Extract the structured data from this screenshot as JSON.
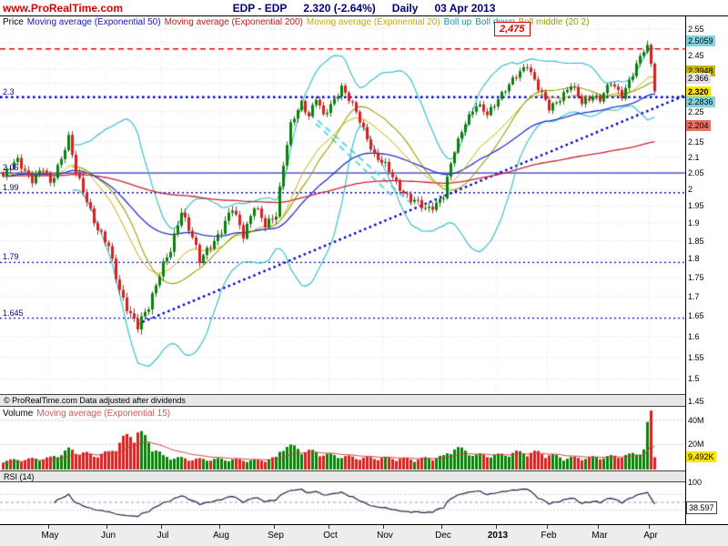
{
  "header": {
    "brand": "www.ProRealTime.com",
    "symbol": "EDP - EDP",
    "last_price": "2.320 (-2.64%)",
    "timeframe": "Daily",
    "date": "03 Apr 2013"
  },
  "price_panel": {
    "legend": [
      {
        "label": "Price",
        "color": "#000000"
      },
      {
        "label": "Moving average (Exponential 50)",
        "color": "#1414cc"
      },
      {
        "label": "Moving average (Exponential 200)",
        "color": "#cc1414"
      },
      {
        "label": "Moving average (Exponential 20)",
        "color": "#c8a800"
      },
      {
        "label": "Boll up",
        "color": "#00a0b4"
      },
      {
        "label": "Boll down",
        "color": "#00a0b4"
      },
      {
        "label": "Boll middle (20 2)",
        "color": "#8e9e00"
      }
    ],
    "alert_label": "2,475",
    "left_labels": [
      {
        "text": "2.3",
        "price": 2.3
      },
      {
        "text": "2.05",
        "price": 2.05
      },
      {
        "text": "1.99",
        "price": 1.99
      },
      {
        "text": "1.79",
        "price": 1.79
      },
      {
        "text": "1.645",
        "price": 1.645
      }
    ],
    "axis_ticks": [
      {
        "text": "2.55",
        "value": 2.55
      },
      {
        "text": "2.45",
        "value": 2.45
      },
      {
        "text": "2.25",
        "value": 2.25
      },
      {
        "text": "2.15",
        "value": 2.15
      },
      {
        "text": "2.1",
        "value": 2.1
      },
      {
        "text": "2.05",
        "value": 2.05
      },
      {
        "text": "2",
        "value": 2.0
      },
      {
        "text": "1.95",
        "value": 1.95
      },
      {
        "text": "1.9",
        "value": 1.9
      },
      {
        "text": "1.85",
        "value": 1.85
      },
      {
        "text": "1.8",
        "value": 1.8
      },
      {
        "text": "1.75",
        "value": 1.75
      },
      {
        "text": "1.7",
        "value": 1.7
      },
      {
        "text": "1.65",
        "value": 1.65
      },
      {
        "text": "1.6",
        "value": 1.6
      },
      {
        "text": "1.55",
        "value": 1.55
      },
      {
        "text": "1.5",
        "value": 1.5
      },
      {
        "text": "1.45",
        "value": 1.45
      }
    ],
    "badges": [
      {
        "text": "2.5059",
        "value": 2.5059,
        "bg": "#7fd4e0",
        "fg": "#000000",
        "bold": false
      },
      {
        "text": "2.3948",
        "value": 2.3948,
        "bg": "#c8b400",
        "fg": "#000000",
        "bold": false
      },
      {
        "text": "2.366",
        "value": 2.366,
        "bg": "#e0e0e0",
        "fg": "#000000",
        "bold": false
      },
      {
        "text": "2.320",
        "value": 2.32,
        "bg": "#ffe400",
        "fg": "#000000",
        "bold": true
      },
      {
        "text": "2.2836",
        "value": 2.2836,
        "bg": "#7fd4e0",
        "fg": "#000000",
        "bold": false
      },
      {
        "text": "2.204",
        "value": 2.204,
        "bg": "#e87060",
        "fg": "#000000",
        "bold": false
      }
    ]
  },
  "copyright": "© ProRealTime.com  Data adjusted after dividends",
  "volume_panel": {
    "legend": [
      {
        "label": "Volume",
        "color": "#000000"
      },
      {
        "label": "Moving average (Exponential 15)",
        "color": "#d45858"
      }
    ],
    "axis": [
      {
        "text": "40M",
        "value": 40
      },
      {
        "text": "20M",
        "value": 20
      }
    ],
    "badge": {
      "text": "9,492K",
      "value": 9.492
    }
  },
  "rsi_panel": {
    "label": "RSI (14)",
    "axis_top": "100",
    "badge": {
      "text": "38.597",
      "value": 38.597
    }
  },
  "xaxis_months": [
    {
      "text": "May",
      "bar": 13,
      "bold": false
    },
    {
      "text": "Jun",
      "bar": 29,
      "bold": false
    },
    {
      "text": "Jul",
      "bar": 44,
      "bold": false
    },
    {
      "text": "Aug",
      "bar": 60,
      "bold": false
    },
    {
      "text": "Sep",
      "bar": 75,
      "bold": false
    },
    {
      "text": "Oct",
      "bar": 90,
      "bold": false
    },
    {
      "text": "Nov",
      "bar": 105,
      "bold": false
    },
    {
      "text": "Dec",
      "bar": 121,
      "bold": false
    },
    {
      "text": "2013",
      "bar": 136,
      "bold": true
    },
    {
      "text": "Feb",
      "bar": 150,
      "bold": false
    },
    {
      "text": "Mar",
      "bar": 164,
      "bold": false
    },
    {
      "text": "Apr",
      "bar": 178,
      "bold": false
    }
  ],
  "chart_data": {
    "type": "candlestick",
    "title": "EDP - EDP Daily",
    "y_axis": {
      "min": 1.45,
      "max": 2.55,
      "scale": "log"
    },
    "bars_total": 180,
    "last_close": 2.32,
    "change_pct": -2.64,
    "close_anchors": [
      [
        0,
        2.04
      ],
      [
        4,
        2.09
      ],
      [
        8,
        2.03
      ],
      [
        11,
        2.06
      ],
      [
        13,
        2.02
      ],
      [
        16,
        2.1
      ],
      [
        18,
        2.16
      ],
      [
        20,
        2.05
      ],
      [
        23,
        1.97
      ],
      [
        26,
        1.88
      ],
      [
        29,
        1.83
      ],
      [
        32,
        1.72
      ],
      [
        35,
        1.65
      ],
      [
        37,
        1.62
      ],
      [
        40,
        1.68
      ],
      [
        43,
        1.76
      ],
      [
        46,
        1.82
      ],
      [
        49,
        1.94
      ],
      [
        52,
        1.86
      ],
      [
        54,
        1.79
      ],
      [
        57,
        1.84
      ],
      [
        60,
        1.88
      ],
      [
        63,
        1.94
      ],
      [
        66,
        1.87
      ],
      [
        69,
        1.95
      ],
      [
        72,
        1.89
      ],
      [
        75,
        1.93
      ],
      [
        77,
        2.08
      ],
      [
        79,
        2.2
      ],
      [
        82,
        2.28
      ],
      [
        84,
        2.24
      ],
      [
        86,
        2.3
      ],
      [
        88,
        2.23
      ],
      [
        90,
        2.27
      ],
      [
        93,
        2.34
      ],
      [
        96,
        2.27
      ],
      [
        99,
        2.19
      ],
      [
        102,
        2.11
      ],
      [
        105,
        2.07
      ],
      [
        108,
        2.02
      ],
      [
        112,
        1.97
      ],
      [
        116,
        1.94
      ],
      [
        119,
        1.96
      ],
      [
        121,
        1.98
      ],
      [
        124,
        2.12
      ],
      [
        127,
        2.22
      ],
      [
        130,
        2.27
      ],
      [
        133,
        2.24
      ],
      [
        136,
        2.3
      ],
      [
        139,
        2.34
      ],
      [
        142,
        2.39
      ],
      [
        144,
        2.42
      ],
      [
        147,
        2.33
      ],
      [
        150,
        2.26
      ],
      [
        153,
        2.3
      ],
      [
        156,
        2.34
      ],
      [
        159,
        2.28
      ],
      [
        162,
        2.31
      ],
      [
        164,
        2.29
      ],
      [
        167,
        2.35
      ],
      [
        170,
        2.31
      ],
      [
        173,
        2.38
      ],
      [
        175,
        2.44
      ],
      [
        177,
        2.5
      ],
      [
        178,
        2.42
      ],
      [
        179,
        2.32
      ]
    ],
    "volume_anchors_millions": [
      [
        0,
        6
      ],
      [
        13,
        8
      ],
      [
        18,
        14
      ],
      [
        25,
        10
      ],
      [
        29,
        12
      ],
      [
        33,
        22
      ],
      [
        37,
        28
      ],
      [
        44,
        9
      ],
      [
        52,
        7
      ],
      [
        60,
        7
      ],
      [
        70,
        6
      ],
      [
        75,
        8
      ],
      [
        77,
        18
      ],
      [
        82,
        14
      ],
      [
        90,
        10
      ],
      [
        98,
        8
      ],
      [
        105,
        8
      ],
      [
        113,
        7
      ],
      [
        121,
        9
      ],
      [
        124,
        16
      ],
      [
        130,
        10
      ],
      [
        136,
        10
      ],
      [
        141,
        12
      ],
      [
        147,
        12
      ],
      [
        154,
        8
      ],
      [
        160,
        8
      ],
      [
        167,
        9
      ],
      [
        172,
        10
      ],
      [
        176,
        14
      ],
      [
        178,
        48
      ],
      [
        179,
        9.492
      ]
    ],
    "levels": [
      {
        "price": 2.475,
        "style": "dashed",
        "color": "#e80000",
        "label": "2,475"
      },
      {
        "price": 2.3,
        "style": "dotted-bold",
        "color": "#0000cc",
        "label": "2.3"
      },
      {
        "price": 2.05,
        "style": "solid",
        "color": "#3333cc",
        "label": "2.05"
      },
      {
        "price": 1.99,
        "style": "dotted",
        "color": "#0000cc",
        "label": "1.99"
      },
      {
        "price": 1.79,
        "style": "dotted",
        "color": "#0000cc",
        "label": "1.79"
      },
      {
        "price": 1.645,
        "style": "dotted",
        "color": "#0000cc",
        "label": "1.645"
      }
    ],
    "trendline": {
      "from_bar": 37,
      "from_price": 1.63,
      "to_bar": 190,
      "to_price": 2.32,
      "style": "dotted-bold",
      "color": "#0000cc"
    },
    "channel_lines": [
      {
        "from_bar": 82,
        "from_price": 2.27,
        "to_bar": 113,
        "to_price": 1.95,
        "color": "#66d4e8"
      },
      {
        "from_bar": 86,
        "from_price": 2.21,
        "to_bar": 107,
        "to_price": 1.98,
        "color": "#66d4e8"
      }
    ],
    "indicators": {
      "price": [
        "EMA20",
        "EMA50",
        "EMA200",
        "Bollinger 20,2"
      ],
      "volume": [
        "EMA15"
      ],
      "rsi_period": 14,
      "rsi_last": 38.597,
      "volume_last_thousands": 9492
    },
    "candle_up_color": "#0f7d0f",
    "candle_down_color": "#d22222"
  }
}
